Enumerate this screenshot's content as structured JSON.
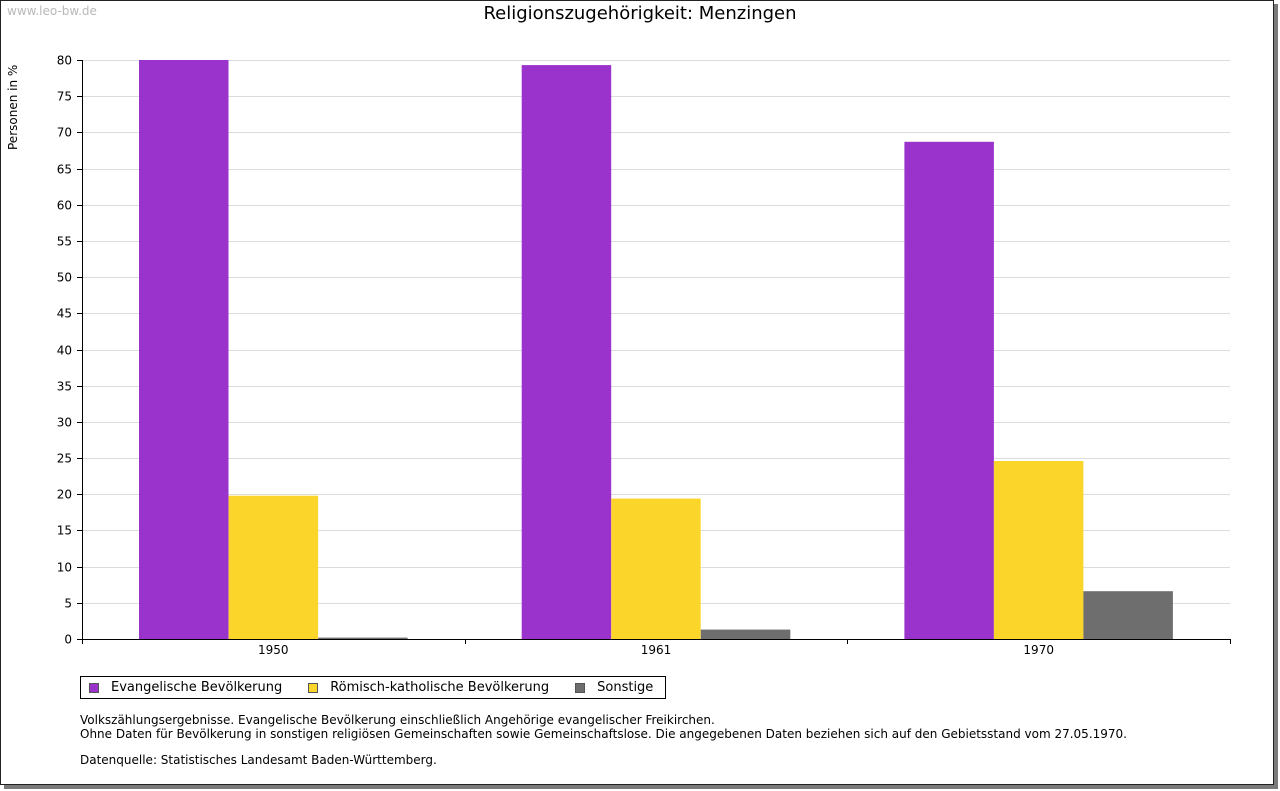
{
  "watermark": "www.leo-bw.de",
  "chart_data": {
    "type": "bar",
    "title": "Religionszugehörigkeit: Menzingen",
    "ylabel": "Personen in %",
    "xlabel": "",
    "categories": [
      "1950",
      "1961",
      "1970"
    ],
    "ylim": [
      0,
      80
    ],
    "yticks": [
      0,
      5,
      10,
      15,
      20,
      25,
      30,
      35,
      40,
      45,
      50,
      55,
      60,
      65,
      70,
      75,
      80
    ],
    "grid": true,
    "legend_position": "bottom",
    "series": [
      {
        "name": "Evangelische Bevölkerung",
        "color": "#9933cc",
        "values": [
          80.0,
          79.3,
          68.7
        ]
      },
      {
        "name": "Römisch-katholische Bevölkerung",
        "color": "#fcd52b",
        "values": [
          19.8,
          19.4,
          24.6
        ]
      },
      {
        "name": "Sonstige",
        "color": "#6e6e6e",
        "values": [
          0.2,
          1.3,
          6.6
        ]
      }
    ]
  },
  "notes": {
    "line1": "Volkszählungsergebnisse. Evangelische Bevölkerung einschließlich Angehörige evangelischer Freikirchen.",
    "line2": "Ohne Daten für Bevölkerung in sonstigen religiösen Gemeinschaften sowie Gemeinschaftslose. Die angegebenen Daten beziehen sich auf den Gebietsstand vom 27.05.1970.",
    "source": "Datenquelle: Statistisches Landesamt Baden-Württemberg."
  }
}
